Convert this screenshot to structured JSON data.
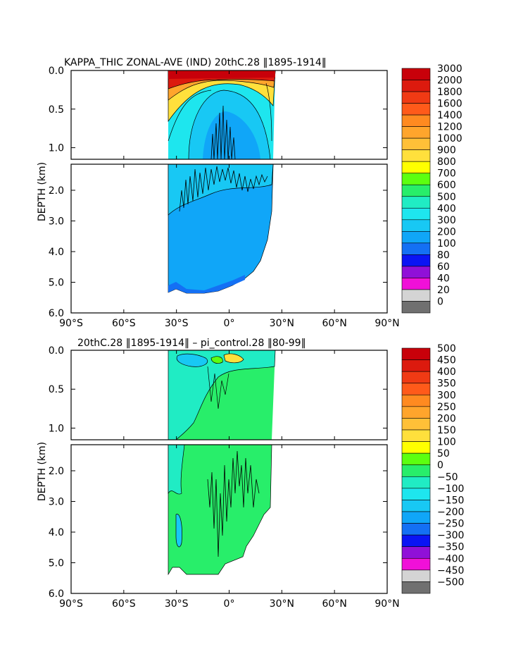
{
  "chart_data": [
    {
      "type": "heatmap",
      "title": "KAPPA_THIC ZONAL-AVE (IND) 20thC.28 ‖1895-1914‖",
      "ylabel": "DEPTH (km)",
      "xlabel": "",
      "x_ticks": [
        "90°S",
        "60°S",
        "30°S",
        "0°",
        "30°N",
        "60°N",
        "90°N"
      ],
      "x_tick_values": [
        -90,
        -60,
        -30,
        0,
        30,
        60,
        90
      ],
      "upper_y_ticks": [
        "0.0",
        "0.5",
        "1.0"
      ],
      "upper_y_values": [
        0.0,
        0.5,
        1.0
      ],
      "lower_y_ticks": [
        "2.0",
        "3.0",
        "4.0",
        "5.0",
        "6.0"
      ],
      "lower_y_values": [
        2.0,
        3.0,
        4.0,
        5.0,
        6.0
      ],
      "xlim": [
        -90,
        90
      ],
      "ylim_upper": [
        0,
        1.15
      ],
      "ylim_lower": [
        1.15,
        6.0
      ],
      "data_extent_lat": [
        -34,
        26
      ],
      "colorbar_labels": [
        "3000",
        "2000",
        "1800",
        "1600",
        "1400",
        "1200",
        "1000",
        "900",
        "800",
        "700",
        "600",
        "500",
        "400",
        "300",
        "200",
        "100",
        "80",
        "60",
        "40",
        "20",
        "0"
      ],
      "colorbar_colors": [
        "#c8000a",
        "#dc1a0e",
        "#f03a14",
        "#ff5a1a",
        "#ff8a20",
        "#ffa52c",
        "#ffc038",
        "#ffe03c",
        "#ffff00",
        "#5cff10",
        "#28ee6a",
        "#20ecc4",
        "#1ee6ee",
        "#18c8f4",
        "#10a6f8",
        "#1470f4",
        "#0a14f4",
        "#9010d8",
        "#f010d8",
        "#d4d4d4",
        "#707070"
      ],
      "fills": {
        "deep": "#10a6f8",
        "mid": "#18c8f4",
        "upper": "#1ee6ee",
        "surface": "#c8000a",
        "bottom": "#1470f4"
      }
    },
    {
      "type": "heatmap",
      "title": "20thC.28 ‖1895-1914‖ – pi_control.28 ‖80-99‖",
      "ylabel": "DEPTH (km)",
      "xlabel": "",
      "x_ticks": [
        "90°S",
        "60°S",
        "30°S",
        "0°",
        "30°N",
        "60°N",
        "90°N"
      ],
      "x_tick_values": [
        -90,
        -60,
        -30,
        0,
        30,
        60,
        90
      ],
      "upper_y_ticks": [
        "0.0",
        "0.5",
        "1.0"
      ],
      "upper_y_values": [
        0.0,
        0.5,
        1.0
      ],
      "lower_y_ticks": [
        "2.0",
        "3.0",
        "4.0",
        "5.0",
        "6.0"
      ],
      "lower_y_values": [
        2.0,
        3.0,
        4.0,
        5.0,
        6.0
      ],
      "xlim": [
        -90,
        90
      ],
      "ylim_upper": [
        0,
        1.15
      ],
      "ylim_lower": [
        1.15,
        6.0
      ],
      "data_extent_lat": [
        -34,
        26
      ],
      "colorbar_labels": [
        "500",
        "450",
        "400",
        "350",
        "300",
        "250",
        "200",
        "150",
        "100",
        "50",
        "0",
        "−50",
        "−100",
        "−150",
        "−200",
        "−250",
        "−300",
        "−350",
        "−400",
        "−450",
        "−500"
      ],
      "colorbar_colors": [
        "#c8000a",
        "#dc1a0e",
        "#f03a14",
        "#ff5a1a",
        "#ff8a20",
        "#ffa52c",
        "#ffc038",
        "#ffe03c",
        "#ffff00",
        "#5cff10",
        "#28ee6a",
        "#20ecc4",
        "#1ee6ee",
        "#18c8f4",
        "#10a6f8",
        "#1470f4",
        "#0a14f4",
        "#9010d8",
        "#f010d8",
        "#d4d4d4",
        "#707070"
      ],
      "fills": {
        "base": "#28ee6a",
        "cyan": "#20ecc4",
        "light": "#18c8f4"
      }
    }
  ]
}
